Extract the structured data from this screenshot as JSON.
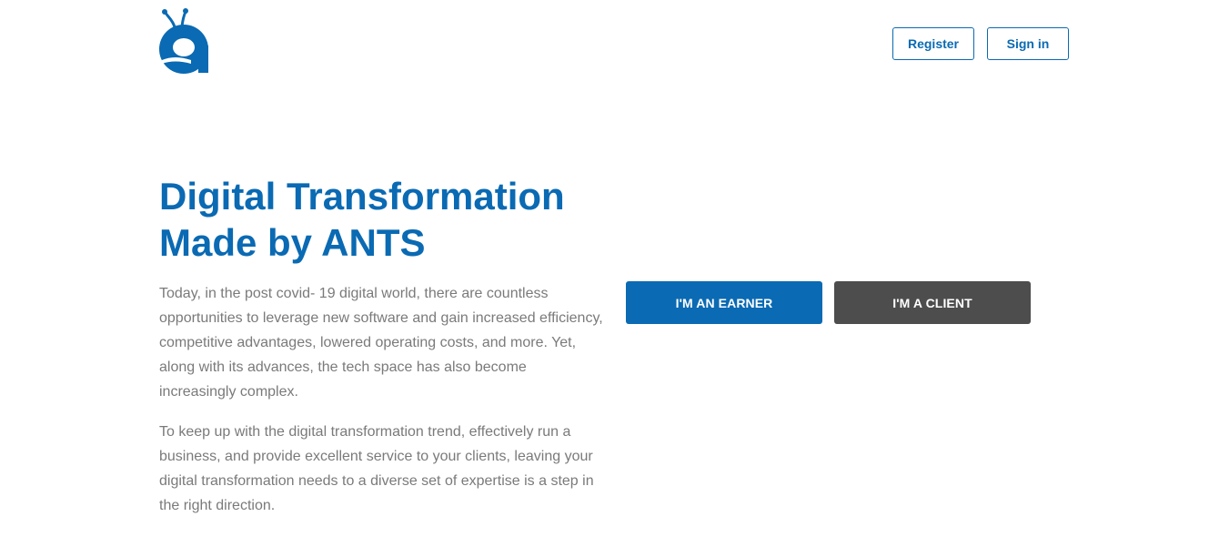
{
  "brand": {
    "logo_letter": "a",
    "primary_color": "#0a6ab3",
    "secondary_color": "#4d4d4d",
    "text_color": "#7a7a7a"
  },
  "header": {
    "register_label": "Register",
    "signin_label": "Sign in"
  },
  "hero": {
    "title_line1": "Digital Transformation",
    "title_line2": "Made by ANTS",
    "paragraph1": "Today, in the post covid- 19 digital world, there are countless opportunities to leverage new software and gain increased efficiency, competitive advantages, lowered operating costs, and more. Yet, along with its advances, the tech space has also become increasingly complex.",
    "paragraph2": "To keep up with the digital transformation trend, effectively run a business, and provide excellent service to your clients, leaving your digital transformation needs to a diverse set of expertise is a step in the right direction."
  },
  "cta": {
    "earner_label": "I'M AN EARNER",
    "client_label": "I'M A CLIENT"
  }
}
